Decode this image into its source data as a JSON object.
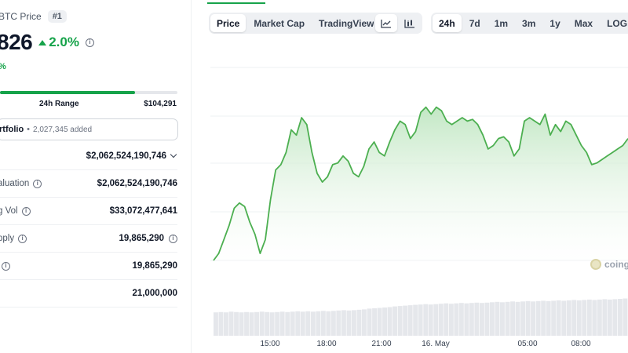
{
  "coin": {
    "price_title": "BTC Price",
    "rank": "#1",
    "price": "826",
    "change_24h": "2.0%",
    "btc_change": "%",
    "range_label": "24h Range",
    "range_high": "$104,291",
    "range_position": 0.76
  },
  "portfolio": {
    "label": "rtfolio",
    "separator": "•",
    "count": "2,027,345 added"
  },
  "stats": [
    {
      "label": "",
      "value": "$2,062,524,190,746",
      "has_info": false,
      "has_chevron": true,
      "value_info": false
    },
    {
      "label": "aluation",
      "value": "$2,062,524,190,746",
      "has_info": true,
      "has_chevron": false,
      "value_info": false
    },
    {
      "label": "g Vol",
      "value": "$33,072,477,641",
      "has_info": true,
      "has_chevron": false,
      "value_info": false
    },
    {
      "label": "pply",
      "value": "19,865,290",
      "has_info": true,
      "has_chevron": false,
      "value_info": true
    },
    {
      "label": "",
      "value": "19,865,290",
      "has_info": true,
      "has_chevron": false,
      "value_info": false
    },
    {
      "label": "",
      "value": "21,000,000",
      "has_info": false,
      "has_chevron": false,
      "value_info": false
    }
  ],
  "toolbar": {
    "views": [
      "Price",
      "Market Cap",
      "TradingView"
    ],
    "active_view": "Price",
    "chart_type_icons": [
      "line-chart-icon",
      "candlestick-chart-icon"
    ],
    "active_chart_type": "line-chart-icon",
    "ranges": [
      "24h",
      "7d",
      "1m",
      "3m",
      "1y",
      "Max",
      "LOG"
    ],
    "active_range": "24h"
  },
  "watermark": "coing",
  "colors": {
    "accent_green": "#16a34a",
    "line": "#4caf50",
    "fill_top": "#bfe6c1",
    "grid": "#eef0f3",
    "volume": "#e5e7eb"
  },
  "chart_data": {
    "type": "area",
    "x_tick_labels": [
      "15:00",
      "18:00",
      "21:00",
      "16. May",
      "05:00",
      "08:00"
    ],
    "x": [
      0,
      1,
      2,
      3,
      4,
      5,
      6,
      7,
      8,
      9,
      10,
      11,
      12,
      13,
      14,
      15,
      16,
      17,
      18,
      19,
      20,
      21,
      22,
      23,
      24,
      25,
      26,
      27,
      28,
      29,
      30,
      31,
      32,
      33,
      34,
      35,
      36,
      37,
      38,
      39,
      40,
      41,
      42,
      43,
      44,
      45,
      46,
      47,
      48,
      49,
      50,
      51,
      52,
      53,
      54,
      55,
      56,
      57,
      58,
      59,
      60,
      61,
      62,
      63,
      64,
      65,
      66,
      67,
      68,
      69,
      70,
      71,
      72,
      73,
      74,
      75,
      76,
      77,
      78,
      79,
      80
    ],
    "values": [
      0.0,
      0.04,
      0.12,
      0.2,
      0.3,
      0.33,
      0.31,
      0.22,
      0.15,
      0.04,
      0.12,
      0.35,
      0.52,
      0.55,
      0.62,
      0.75,
      0.72,
      0.82,
      0.78,
      0.62,
      0.5,
      0.45,
      0.48,
      0.55,
      0.56,
      0.6,
      0.57,
      0.5,
      0.48,
      0.54,
      0.64,
      0.68,
      0.62,
      0.6,
      0.68,
      0.75,
      0.8,
      0.78,
      0.7,
      0.74,
      0.85,
      0.88,
      0.84,
      0.88,
      0.86,
      0.8,
      0.78,
      0.8,
      0.82,
      0.8,
      0.81,
      0.78,
      0.72,
      0.64,
      0.66,
      0.7,
      0.71,
      0.68,
      0.6,
      0.64,
      0.8,
      0.82,
      0.8,
      0.78,
      0.84,
      0.72,
      0.78,
      0.74,
      0.8,
      0.78,
      0.72,
      0.66,
      0.62,
      0.55,
      0.56,
      0.58,
      0.6,
      0.62,
      0.64,
      0.66,
      0.7
    ],
    "volume": [
      0.62,
      0.63,
      0.62,
      0.64,
      0.63,
      0.62,
      0.63,
      0.62,
      0.63,
      0.64,
      0.63,
      0.62,
      0.63,
      0.64,
      0.63,
      0.64,
      0.65,
      0.64,
      0.65,
      0.64,
      0.65,
      0.66,
      0.65,
      0.66,
      0.67,
      0.68,
      0.67,
      0.68,
      0.69,
      0.7,
      0.72,
      0.73,
      0.74,
      0.75,
      0.76,
      0.78,
      0.79,
      0.8,
      0.81,
      0.82,
      0.83,
      0.84,
      0.83,
      0.84,
      0.85,
      0.86,
      0.85,
      0.86,
      0.87,
      0.86,
      0.87,
      0.88,
      0.87,
      0.88,
      0.89,
      0.9,
      0.89,
      0.9,
      0.91,
      0.9,
      0.91,
      0.92,
      0.91,
      0.92,
      0.93,
      0.92,
      0.93,
      0.94,
      0.93,
      0.94,
      0.95,
      0.94,
      0.95,
      0.96,
      0.95,
      0.96,
      0.97,
      0.96,
      0.97,
      0.98,
      0.99
    ],
    "grid": true
  }
}
